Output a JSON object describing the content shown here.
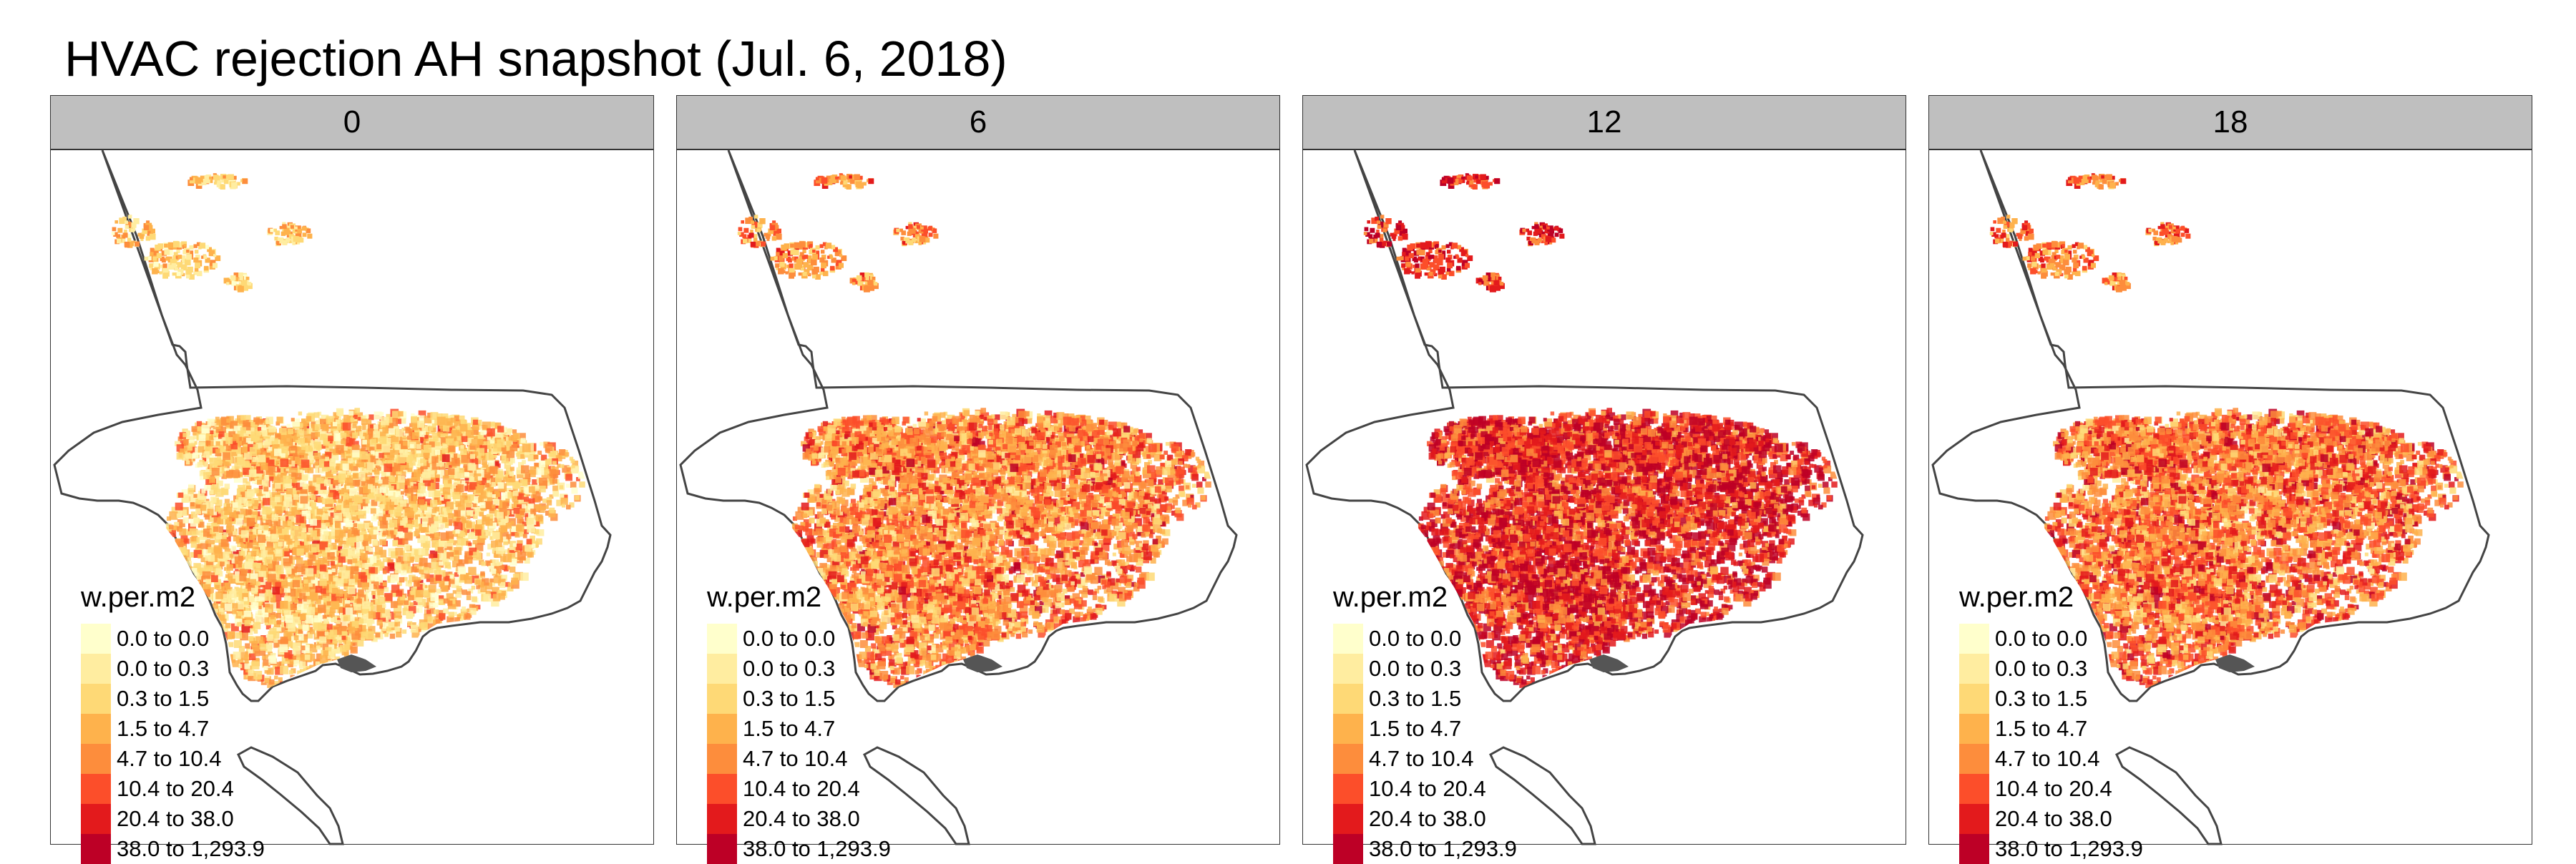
{
  "title": "HVAC rejection AH snapshot (Jul. 6, 2018)",
  "panels": [
    {
      "label": "0",
      "intensity": 0.15
    },
    {
      "label": "6",
      "intensity": 0.45
    },
    {
      "label": "12",
      "intensity": 0.85
    },
    {
      "label": "18",
      "intensity": 0.55
    }
  ],
  "legend": {
    "title": "w.per.m2",
    "classes": [
      {
        "label": "0.0 to 0.0",
        "color": "#ffffcc"
      },
      {
        "label": "0.0 to 0.3",
        "color": "#ffeda0"
      },
      {
        "label": "0.3 to 1.5",
        "color": "#fed976"
      },
      {
        "label": "1.5 to 4.7",
        "color": "#feb24c"
      },
      {
        "label": "4.7 to 10.4",
        "color": "#fd8d3c"
      },
      {
        "label": "10.4 to 20.4",
        "color": "#fc4e2a"
      },
      {
        "label": "20.4 to 38.0",
        "color": "#e31a1c"
      },
      {
        "label": "38.0 to 1,293.9",
        "color": "#bd0026"
      }
    ]
  }
}
